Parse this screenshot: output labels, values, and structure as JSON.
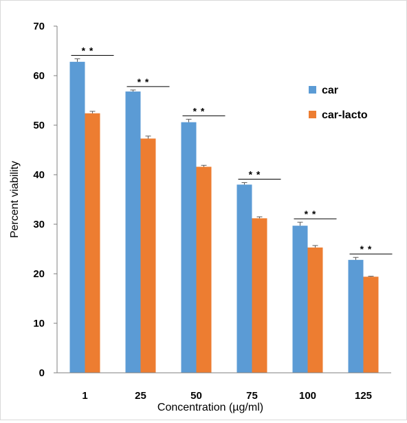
{
  "chart_data": {
    "type": "bar",
    "title": "",
    "xlabel": "Concentration (µg/ml)",
    "ylabel": "Percent viability",
    "ylim": [
      0,
      70
    ],
    "yticks": [
      0,
      10,
      20,
      30,
      40,
      50,
      60,
      70
    ],
    "categories": [
      "1",
      "25",
      "50",
      "75",
      "100",
      "125"
    ],
    "series": [
      {
        "name": "car",
        "color": "#5B9BD5",
        "values": [
          62.8,
          56.8,
          50.6,
          38.0,
          29.7,
          22.8
        ],
        "errors": [
          0.6,
          0.3,
          0.6,
          0.4,
          0.7,
          0.5
        ]
      },
      {
        "name": "car-lacto",
        "color": "#ED7D31",
        "values": [
          52.4,
          47.3,
          41.6,
          31.2,
          25.3,
          19.4
        ],
        "errors": [
          0.4,
          0.5,
          0.3,
          0.3,
          0.4,
          0.1
        ]
      }
    ],
    "significance": [
      "* *",
      "* *",
      "* *",
      "* *",
      "* *",
      "* *"
    ],
    "legend_position": "right",
    "grid": false
  }
}
